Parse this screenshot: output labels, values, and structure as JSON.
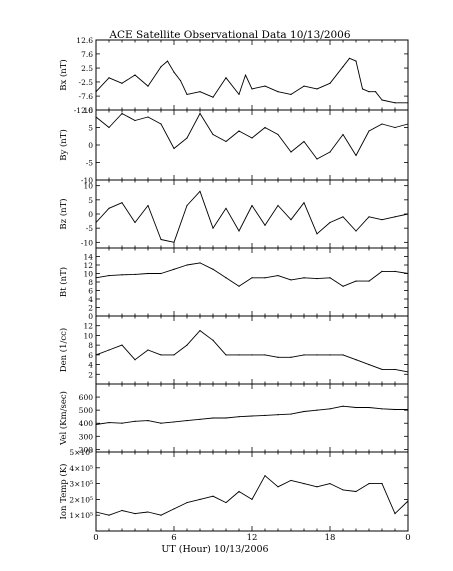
{
  "title": "ACE Satellite Observational Data   10/13/2006",
  "xlabel": "UT (Hour)  10/13/2006",
  "x_ticks": [
    "0",
    "6",
    "12",
    "18",
    "0"
  ],
  "chart_data": [
    {
      "type": "line",
      "ylabel": "Bx (nT)",
      "ylim": [
        -12.6,
        12.6
      ],
      "yticks": [
        "12.6",
        "7.6",
        "2.5",
        "-2.5",
        "-7.6",
        "-12.6"
      ],
      "x": [
        0,
        1,
        2,
        3,
        4,
        5,
        5.5,
        6,
        6.5,
        7,
        8,
        9,
        10,
        11,
        11.5,
        12,
        13,
        14,
        15,
        16,
        17,
        18,
        19,
        19.5,
        20,
        20.5,
        21,
        21.5,
        22,
        23,
        24
      ],
      "values": [
        -6,
        -1,
        -3,
        0,
        -4,
        3,
        5,
        1,
        -2,
        -7,
        -6,
        -8,
        -1,
        -7,
        0,
        -5,
        -4,
        -6,
        -7,
        -4,
        -5,
        -3,
        3,
        6,
        5,
        -5,
        -6,
        -6,
        -9,
        -10,
        -10
      ]
    },
    {
      "type": "line",
      "ylabel": "By (nT)",
      "ylim": [
        -10,
        10
      ],
      "yticks": [
        "10",
        "5",
        "0",
        "-5",
        "-10"
      ],
      "x": [
        0,
        1,
        2,
        3,
        4,
        5,
        6,
        7,
        8,
        9,
        10,
        11,
        12,
        13,
        14,
        15,
        16,
        17,
        18,
        19,
        20,
        21,
        22,
        23,
        24
      ],
      "values": [
        8,
        5,
        9,
        7,
        8,
        6,
        -1,
        2,
        9,
        3,
        1,
        4,
        2,
        5,
        3,
        -2,
        1,
        -4,
        -2,
        3,
        -3,
        4,
        6,
        5,
        6
      ]
    },
    {
      "type": "line",
      "ylabel": "Bz (nT)",
      "ylim": [
        -12,
        12
      ],
      "yticks": [
        "10",
        "5",
        "0",
        "-5",
        "-10"
      ],
      "x": [
        0,
        1,
        2,
        3,
        4,
        5,
        6,
        7,
        8,
        9,
        10,
        11,
        12,
        13,
        14,
        15,
        16,
        17,
        18,
        19,
        20,
        21,
        22,
        23,
        24
      ],
      "values": [
        -3,
        2,
        4,
        -3,
        3,
        -9,
        -10,
        3,
        8,
        -5,
        2,
        -6,
        3,
        -4,
        3,
        -2,
        4,
        -7,
        -3,
        -1,
        -6,
        -1,
        -2,
        -1,
        0
      ]
    },
    {
      "type": "line",
      "ylabel": "Bt (nT)",
      "ylim": [
        0,
        16
      ],
      "yticks": [
        "14",
        "12",
        "10",
        "8",
        "6",
        "4",
        "2",
        "0"
      ],
      "x": [
        0,
        1,
        2,
        3,
        4,
        5,
        6,
        7,
        8,
        9,
        10,
        11,
        12,
        13,
        14,
        15,
        16,
        17,
        18,
        19,
        20,
        21,
        22,
        23,
        24
      ],
      "values": [
        9,
        9.5,
        9.7,
        9.8,
        10,
        10,
        11,
        12,
        12.5,
        11,
        9,
        7,
        9,
        9,
        9.5,
        8.5,
        9,
        8.8,
        9,
        7,
        8.2,
        8.2,
        10.5,
        10.5,
        10
      ]
    },
    {
      "type": "line",
      "ylabel": "Den (1/cc)",
      "ylim": [
        0,
        14
      ],
      "yticks": [
        "12",
        "10",
        "8",
        "6",
        "4",
        "2"
      ],
      "x": [
        0,
        1,
        2,
        3,
        4,
        5,
        6,
        7,
        8,
        9,
        10,
        11,
        12,
        13,
        14,
        15,
        16,
        17,
        18,
        19,
        20,
        21,
        22,
        23,
        24
      ],
      "values": [
        6,
        7,
        8,
        5,
        7,
        6,
        6,
        8,
        11,
        9,
        6,
        6,
        6,
        6,
        5.5,
        5.5,
        6,
        6,
        6,
        6,
        5,
        4,
        3,
        3,
        2.5
      ]
    },
    {
      "type": "line",
      "ylabel": "Vel (Km/sec)",
      "ylim": [
        180,
        700
      ],
      "yticks": [
        "600",
        "500",
        "400",
        "300",
        "200"
      ],
      "x": [
        0,
        1,
        2,
        3,
        4,
        5,
        6,
        7,
        8,
        9,
        10,
        11,
        12,
        13,
        14,
        15,
        16,
        17,
        18,
        19,
        20,
        21,
        22,
        23,
        24
      ],
      "values": [
        390,
        405,
        400,
        415,
        420,
        400,
        410,
        420,
        430,
        440,
        440,
        450,
        455,
        460,
        465,
        470,
        490,
        500,
        510,
        530,
        520,
        520,
        510,
        505,
        505
      ]
    },
    {
      "type": "line",
      "ylabel": "Ion Temp (K)",
      "ylim": [
        0,
        500000
      ],
      "yticks": [
        "5×10⁵",
        "4×10⁵",
        "3×10⁵",
        "2×10⁵",
        "1×10⁵"
      ],
      "x": [
        0,
        1,
        2,
        3,
        4,
        5,
        6,
        7,
        8,
        9,
        10,
        11,
        12,
        13,
        14,
        15,
        16,
        17,
        18,
        19,
        20,
        21,
        22,
        23,
        24
      ],
      "values": [
        120000,
        100000,
        130000,
        110000,
        120000,
        100000,
        140000,
        180000,
        200000,
        220000,
        180000,
        250000,
        200000,
        350000,
        280000,
        320000,
        300000,
        280000,
        300000,
        260000,
        250000,
        300000,
        300000,
        110000,
        190000
      ]
    }
  ]
}
